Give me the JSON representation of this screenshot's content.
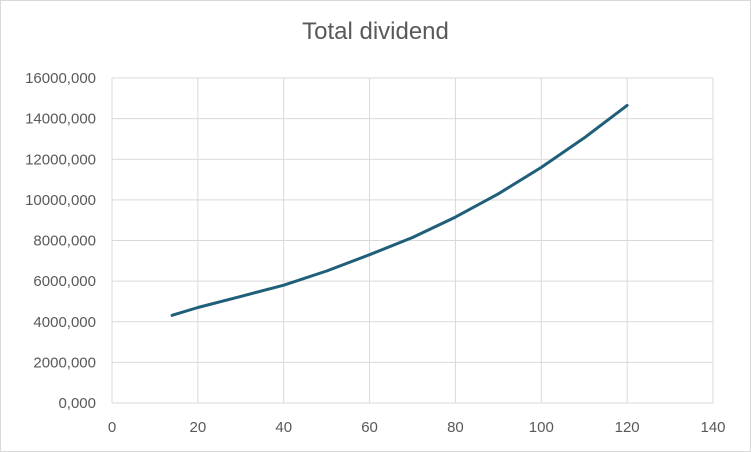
{
  "chart_data": {
    "type": "line",
    "title": "Total dividend",
    "xlabel": "",
    "ylabel": "",
    "xlim": [
      0,
      140
    ],
    "ylim": [
      0,
      16000
    ],
    "x_ticks": [
      0,
      20,
      40,
      60,
      80,
      100,
      120,
      140
    ],
    "x_tick_labels": [
      "0",
      "20",
      "40",
      "60",
      "80",
      "100",
      "120",
      "140"
    ],
    "y_ticks": [
      0,
      2000,
      4000,
      6000,
      8000,
      10000,
      12000,
      14000,
      16000
    ],
    "y_tick_labels": [
      "0,000",
      "2000,000",
      "4000,000",
      "6000,000",
      "8000,000",
      "10000,000",
      "12000,000",
      "14000,000",
      "16000,000"
    ],
    "grid": true,
    "legend": "none",
    "line_color": "#1f5f7a",
    "series": [
      {
        "x": [
          14,
          20,
          30,
          40,
          50,
          60,
          70,
          80,
          90,
          100,
          110,
          120
        ],
        "y": [
          4320,
          4700,
          5250,
          5800,
          6500,
          7300,
          8150,
          9150,
          10300,
          11600,
          13050,
          14650
        ]
      }
    ]
  }
}
